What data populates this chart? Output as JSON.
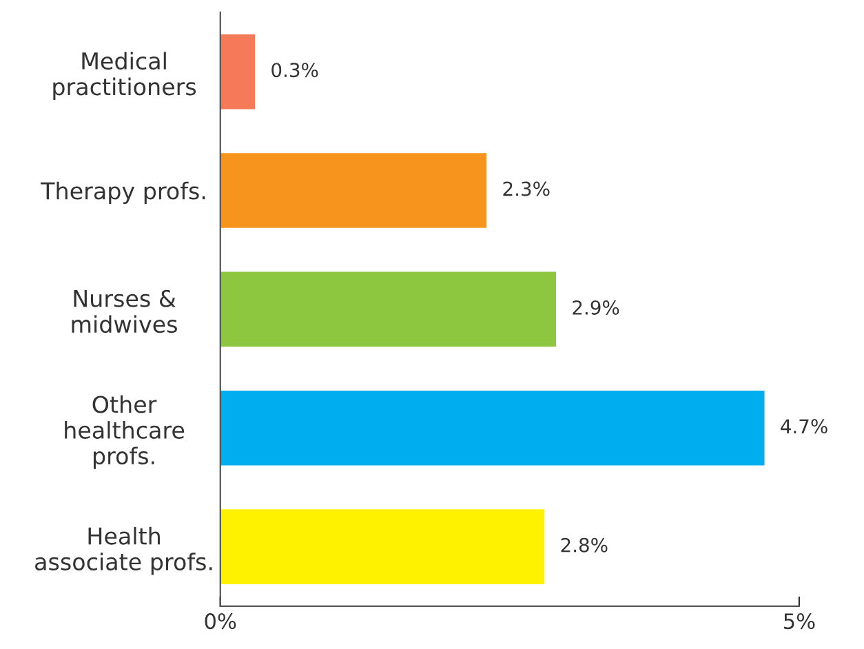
{
  "chart_data": {
    "type": "bar",
    "orientation": "horizontal",
    "categories": [
      "Medical\npractitioners",
      "Therapy profs.",
      "Nurses &\nmidwives",
      "Other\nhealthcare\nprofs.",
      "Health\nassociate profs."
    ],
    "values": [
      0.3,
      2.3,
      2.9,
      4.7,
      2.8
    ],
    "colors": [
      "#f47a5a",
      "#f7941d",
      "#8dc63f",
      "#00aeef",
      "#fff200"
    ],
    "value_labels": [
      "0.3%",
      "2.3%",
      "2.9%",
      "4.7%",
      "2.8%"
    ],
    "xlim": [
      0,
      5
    ],
    "xticks": [
      {
        "value": 0,
        "label": "0%"
      },
      {
        "value": 5,
        "label": "5%"
      }
    ],
    "grid": false,
    "legend": false
  }
}
